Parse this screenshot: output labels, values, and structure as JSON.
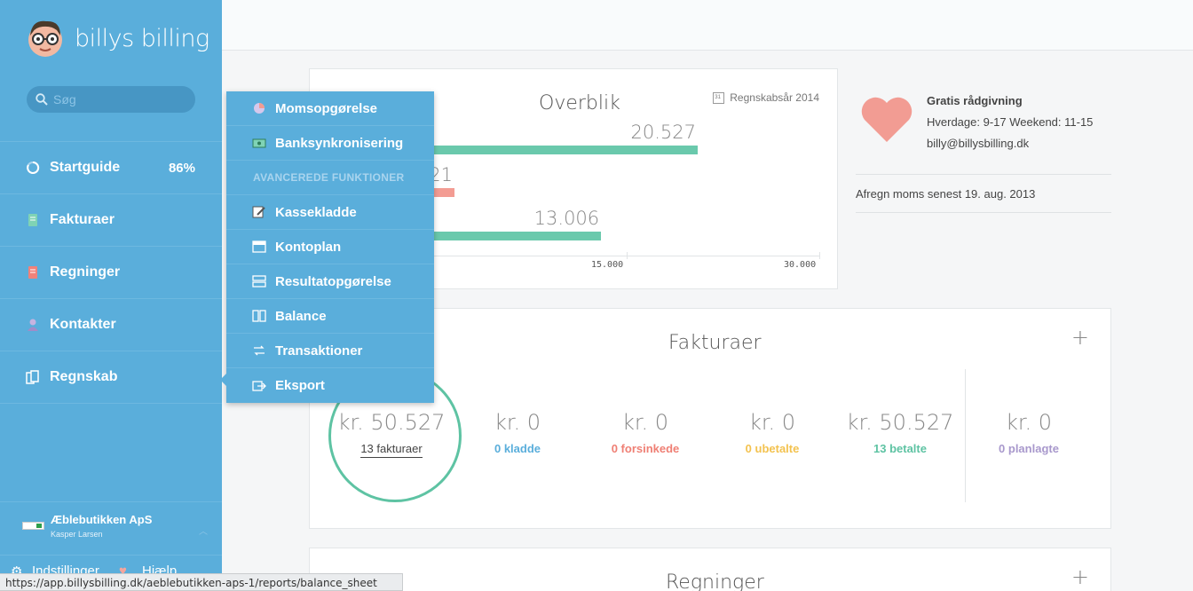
{
  "app": {
    "logo_text": "billys billing"
  },
  "search": {
    "placeholder": "Søg"
  },
  "sidebar": {
    "items": [
      {
        "label": "Startguide",
        "badge": "86%"
      },
      {
        "label": "Fakturaer"
      },
      {
        "label": "Regninger"
      },
      {
        "label": "Kontakter"
      },
      {
        "label": "Regnskab"
      }
    ],
    "company": {
      "name": "Æblebutikken ApS",
      "user": "Kasper Larsen"
    },
    "footer": {
      "settings": "Indstillinger",
      "help": "Hjælp"
    }
  },
  "dropdown": {
    "items_top": [
      {
        "label": "Momsopgørelse"
      },
      {
        "label": "Banksynkronisering"
      }
    ],
    "section_header": "AVANCEREDE FUNKTIONER",
    "items_advanced": [
      {
        "label": "Kassekladde"
      },
      {
        "label": "Kontoplan"
      },
      {
        "label": "Resultatopgørelse"
      },
      {
        "label": "Balance"
      },
      {
        "label": "Transaktioner"
      },
      {
        "label": "Eksport"
      }
    ]
  },
  "overview": {
    "title": "Overblik",
    "year_label": "Regnskabsår 2014",
    "calendar_icon_number": "31"
  },
  "chart_data": {
    "type": "bar",
    "orientation": "horizontal",
    "values": [
      20527,
      21,
      13006
    ],
    "value_labels": [
      "20.527",
      "21",
      "13.006"
    ],
    "colors": [
      "#6ac9ac",
      "#f39c93",
      "#6ac9ac"
    ],
    "xlim": [
      0,
      30000
    ],
    "x_tick_labels": [
      "15.000",
      "30.000"
    ],
    "x_ticks": [
      15000,
      30000
    ]
  },
  "advice": {
    "title": "Gratis rådgivning",
    "hours": "Hverdage: 9-17 Weekend: 11-15",
    "email": "billy@billysbilling.dk",
    "moms_note": "Afregn moms senest 19. aug. 2013"
  },
  "invoices": {
    "title": "Fakturaer",
    "add": "+",
    "total": {
      "amount": "kr. 50.527",
      "label": "13 fakturaer"
    },
    "stats": [
      {
        "amount": "kr. 0",
        "label": "0 kladde",
        "color": "#5aaedb"
      },
      {
        "amount": "kr. 0",
        "label": "0 forsinkede",
        "color": "#ef7f74"
      },
      {
        "amount": "kr. 0",
        "label": "0 ubetalte",
        "color": "#f3c24f"
      },
      {
        "amount": "kr. 50.527",
        "label": "13 betalte",
        "color": "#5ec3a3"
      },
      {
        "amount": "kr. 0",
        "label": "0 planlagte",
        "color": "#a898cc"
      }
    ]
  },
  "bills": {
    "title": "Regninger",
    "add": "+"
  },
  "statusbar": {
    "url": "https://app.billysbilling.dk/aeblebutikken-aps-1/reports/balance_sheet"
  }
}
